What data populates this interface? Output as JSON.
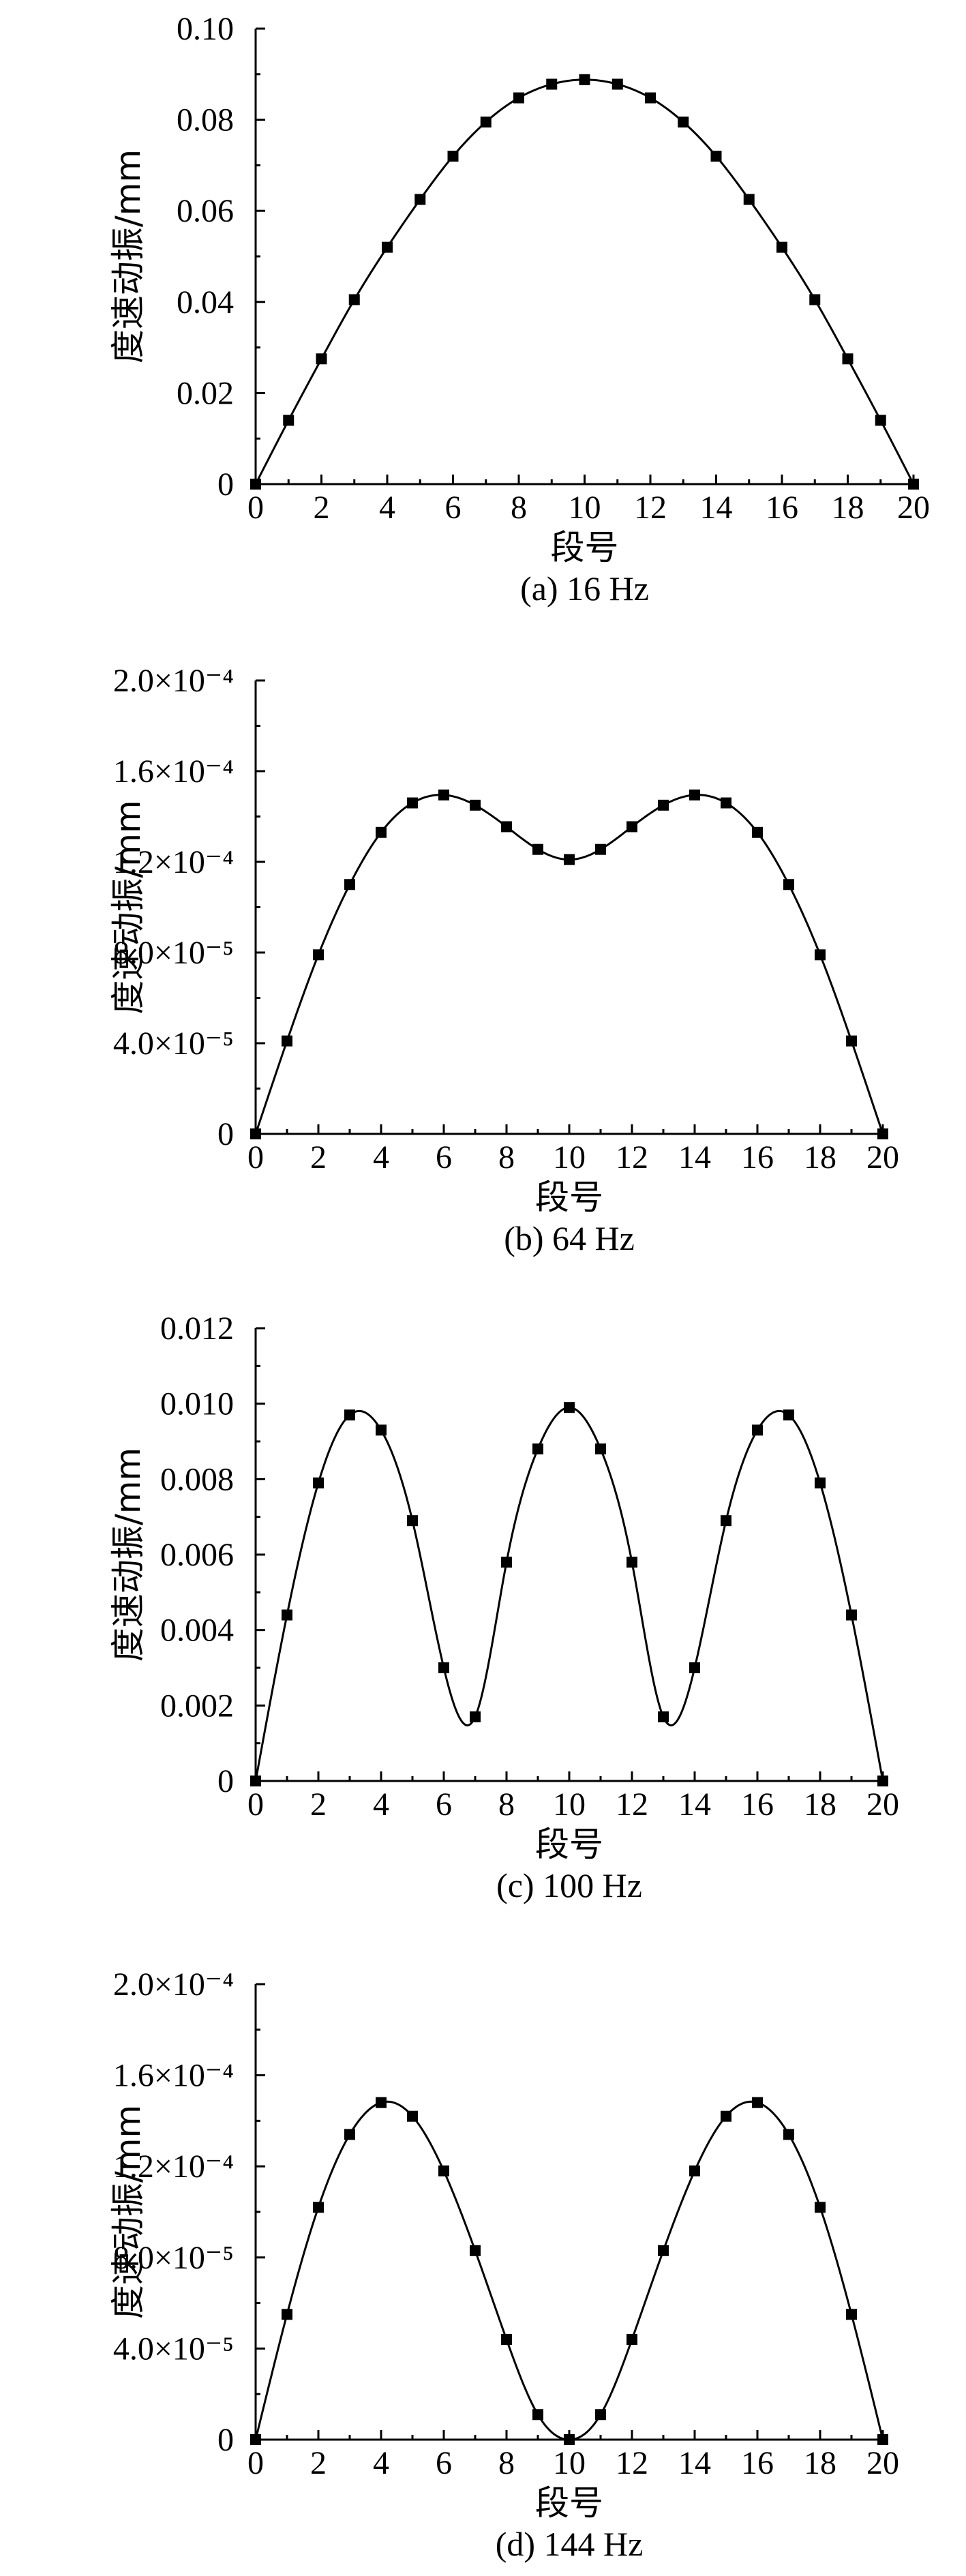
{
  "chart_data": [
    {
      "type": "line",
      "caption": "(a) 16 Hz",
      "xlabel": "段号",
      "ylabel": "度速动振/mm",
      "xlim": [
        0,
        20
      ],
      "ylim": [
        0,
        0.1
      ],
      "xticks": [
        0,
        2,
        4,
        6,
        8,
        10,
        12,
        14,
        16,
        18,
        20
      ],
      "yticks": [
        0,
        0.02,
        0.04,
        0.06,
        0.08,
        0.1
      ],
      "ytick_labels": [
        "0",
        "0.02",
        "0.04",
        "0.06",
        "0.08",
        "0.10"
      ],
      "x": [
        0,
        1,
        2,
        3,
        4,
        5,
        6,
        7,
        8,
        9,
        10,
        11,
        12,
        13,
        14,
        15,
        16,
        17,
        18,
        19,
        20
      ],
      "values": [
        0,
        0.014,
        0.0275,
        0.0405,
        0.052,
        0.0625,
        0.072,
        0.0795,
        0.0848,
        0.0878,
        0.0888,
        0.0878,
        0.0848,
        0.0795,
        0.072,
        0.0625,
        0.052,
        0.0405,
        0.0275,
        0.014,
        0
      ]
    },
    {
      "type": "line",
      "caption": "(b) 64 Hz",
      "xlabel": "段号",
      "ylabel": "度速动振/mm",
      "xlim": [
        0,
        20
      ],
      "ylim": [
        0,
        0.0002
      ],
      "xticks": [
        0,
        2,
        4,
        6,
        8,
        10,
        12,
        14,
        16,
        18,
        20
      ],
      "yticks": [
        0,
        4e-05,
        8e-05,
        0.00012,
        0.00016,
        0.0002
      ],
      "ytick_labels": [
        "0",
        "4.0×10⁻⁵",
        "8.0×10⁻⁵",
        "1.2×10⁻⁴",
        "1.6×10⁻⁴",
        "2.0×10⁻⁴"
      ],
      "x": [
        0,
        1,
        2,
        3,
        4,
        5,
        6,
        7,
        8,
        9,
        10,
        11,
        12,
        13,
        14,
        15,
        16,
        17,
        18,
        19,
        20
      ],
      "values": [
        0,
        4.1e-05,
        7.9e-05,
        0.00011,
        0.000133,
        0.000146,
        0.0001495,
        0.000145,
        0.0001355,
        0.0001255,
        0.000121,
        0.0001255,
        0.0001355,
        0.000145,
        0.0001495,
        0.000146,
        0.000133,
        0.00011,
        7.9e-05,
        4.1e-05,
        0
      ]
    },
    {
      "type": "line",
      "caption": "(c) 100 Hz",
      "xlabel": "段号",
      "ylabel": "度速动振/mm",
      "xlim": [
        0,
        20
      ],
      "ylim": [
        0,
        0.012
      ],
      "xticks": [
        0,
        2,
        4,
        6,
        8,
        10,
        12,
        14,
        16,
        18,
        20
      ],
      "yticks": [
        0,
        0.002,
        0.004,
        0.006,
        0.008,
        0.01,
        0.012
      ],
      "ytick_labels": [
        "0",
        "0.002",
        "0.004",
        "0.006",
        "0.008",
        "0.010",
        "0.012"
      ],
      "x": [
        0,
        1,
        2,
        3,
        4,
        5,
        6,
        7,
        8,
        9,
        10,
        11,
        12,
        13,
        14,
        15,
        16,
        17,
        18,
        19,
        20
      ],
      "values": [
        0,
        0.0044,
        0.0079,
        0.0097,
        0.0093,
        0.0069,
        0.003,
        0.0017,
        0.0058,
        0.0088,
        0.0099,
        0.0088,
        0.0058,
        0.0017,
        0.003,
        0.0069,
        0.0093,
        0.0097,
        0.0079,
        0.0044,
        0
      ]
    },
    {
      "type": "line",
      "caption": "(d) 144 Hz",
      "xlabel": "段号",
      "ylabel": "度速动振/mm",
      "xlim": [
        0,
        20
      ],
      "ylim": [
        0,
        0.0002
      ],
      "xticks": [
        0,
        2,
        4,
        6,
        8,
        10,
        12,
        14,
        16,
        18,
        20
      ],
      "yticks": [
        0,
        4e-05,
        8e-05,
        0.00012,
        0.00016,
        0.0002
      ],
      "ytick_labels": [
        "0",
        "4.0×10⁻⁵",
        "8.0×10⁻⁵",
        "1.2×10⁻⁴",
        "1.6×10⁻⁴",
        "2.0×10⁻⁴"
      ],
      "x": [
        0,
        1,
        2,
        3,
        4,
        5,
        6,
        7,
        8,
        9,
        10,
        11,
        12,
        13,
        14,
        15,
        16,
        17,
        18,
        19,
        20
      ],
      "values": [
        0,
        5.5e-05,
        0.000102,
        0.000134,
        0.000148,
        0.000142,
        0.000118,
        8.3e-05,
        4.4e-05,
        1.1e-05,
        0,
        1.1e-05,
        4.4e-05,
        8.3e-05,
        0.000118,
        0.000142,
        0.000148,
        0.000134,
        0.000102,
        5.5e-05,
        0
      ]
    }
  ]
}
